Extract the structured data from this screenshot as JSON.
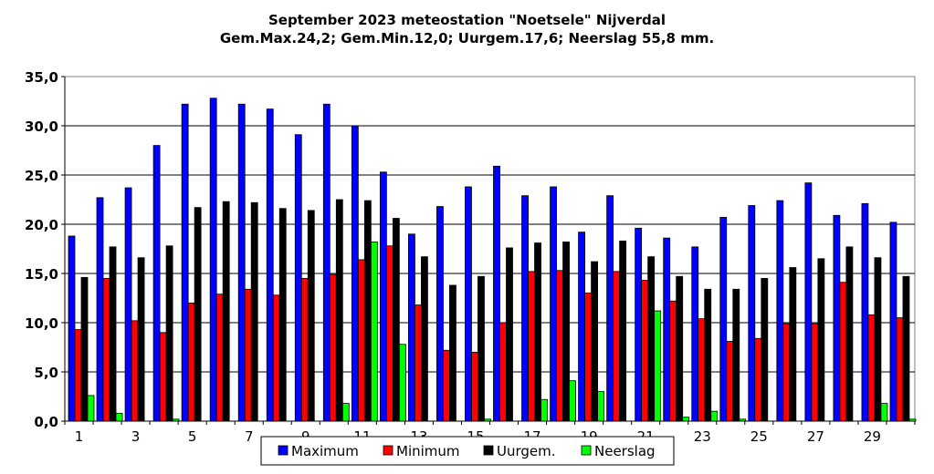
{
  "chart_data": {
    "type": "bar",
    "title": "September 2023 meteostation \"Noetsele\" Nijverdal",
    "subtitle": "Gem.Max.24,2; Gem.Min.12,0; Uurgem.17,6;  Neerslag 55,8 mm.",
    "xlabel": "",
    "ylabel": "",
    "ylim": [
      0,
      35
    ],
    "yticks": [
      "0,0",
      "5,0",
      "10,0",
      "15,0",
      "20,0",
      "25,0",
      "30,0",
      "35,0"
    ],
    "categories": [
      "1",
      "2",
      "3",
      "4",
      "5",
      "6",
      "7",
      "8",
      "9",
      "10",
      "11",
      "12",
      "13",
      "14",
      "15",
      "16",
      "17",
      "18",
      "19",
      "20",
      "21",
      "22",
      "23",
      "24",
      "25",
      "26",
      "27",
      "28",
      "29",
      "30"
    ],
    "xtick_labels": [
      "1",
      "3",
      "5",
      "7",
      "9",
      "11",
      "13",
      "15",
      "17",
      "19",
      "21",
      "23",
      "25",
      "27",
      "29"
    ],
    "grid": "horizontal",
    "legend_position": "bottom",
    "series": [
      {
        "name": "Maximum",
        "color": "#0000ff",
        "values": [
          18.8,
          22.7,
          23.7,
          28.0,
          32.2,
          32.8,
          32.2,
          31.7,
          29.1,
          32.2,
          30.0,
          25.3,
          19.0,
          21.8,
          23.8,
          25.9,
          22.9,
          23.8,
          19.2,
          22.9,
          19.6,
          18.6,
          17.7,
          20.7,
          21.9,
          22.4,
          24.2,
          20.9,
          22.1,
          20.2
        ]
      },
      {
        "name": "Minimum",
        "color": "#ff0000",
        "values": [
          9.3,
          14.5,
          10.2,
          9.0,
          12.0,
          12.9,
          13.4,
          12.8,
          14.5,
          14.9,
          16.4,
          17.8,
          11.8,
          7.2,
          7.0,
          10.0,
          15.2,
          15.3,
          13.0,
          15.2,
          14.3,
          12.2,
          10.4,
          8.1,
          8.4,
          9.9,
          9.9,
          14.1,
          10.8,
          10.5
        ]
      },
      {
        "name": "Uurgem.",
        "color": "#000000",
        "values": [
          14.6,
          17.7,
          16.6,
          17.8,
          21.7,
          22.3,
          22.2,
          21.6,
          21.4,
          22.5,
          22.4,
          20.6,
          16.7,
          13.8,
          14.7,
          17.6,
          18.1,
          18.2,
          16.2,
          18.3,
          16.7,
          14.7,
          13.4,
          13.4,
          14.5,
          15.6,
          16.5,
          17.7,
          16.6,
          14.7
        ]
      },
      {
        "name": "Neerslag",
        "color": "#00ff00",
        "values": [
          2.6,
          0.8,
          0.0,
          0.2,
          0.0,
          0.0,
          0.0,
          0.0,
          0.0,
          1.8,
          18.2,
          7.8,
          0.0,
          0.0,
          0.2,
          0.0,
          2.2,
          4.1,
          3.0,
          0.0,
          11.2,
          0.4,
          1.0,
          0.2,
          0.0,
          0.0,
          0.0,
          0.0,
          1.8,
          0.2
        ]
      }
    ]
  }
}
